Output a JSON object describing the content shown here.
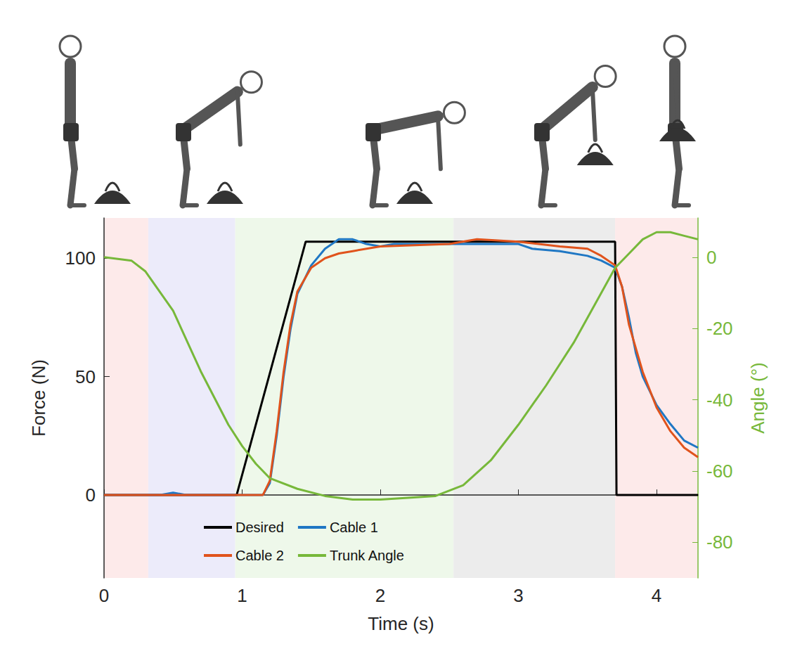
{
  "chart_data": {
    "type": "line",
    "x_label": "Time (s)",
    "y_label": "Force (N)",
    "y2_label": "Angle (°)",
    "xlim": [
      0,
      4.3
    ],
    "xticks": [
      0,
      1,
      2,
      3,
      4
    ],
    "ylim": [
      -35,
      117
    ],
    "yticks": [
      0,
      50,
      100
    ],
    "y2lim": [
      -90,
      11
    ],
    "y2ticks": [
      -80,
      -60,
      -40,
      -20,
      0
    ],
    "grid": false,
    "legend": "bottom",
    "phases": [
      {
        "start": 0,
        "end": 0.32,
        "color": "#fdeaea"
      },
      {
        "start": 0.32,
        "end": 0.95,
        "color": "#ecebfa"
      },
      {
        "start": 0.95,
        "end": 2.53,
        "color": "#eef8ea"
      },
      {
        "start": 2.53,
        "end": 3.7,
        "color": "#ececec"
      },
      {
        "start": 3.7,
        "end": 4.3,
        "color": "#fdeaea"
      }
    ],
    "series": [
      {
        "name": "Desired",
        "color": "#000000",
        "x": [
          0,
          0.96,
          1.46,
          3.7,
          3.71,
          4.3
        ],
        "values": [
          0,
          0,
          107,
          107,
          0,
          0
        ]
      },
      {
        "name": "Cable 1",
        "color": "#1f77c4",
        "x": [
          0,
          0.4,
          0.5,
          0.6,
          1.0,
          1.15,
          1.2,
          1.25,
          1.3,
          1.35,
          1.4,
          1.5,
          1.6,
          1.7,
          1.8,
          1.9,
          2.0,
          2.1,
          2.5,
          3.0,
          3.1,
          3.3,
          3.5,
          3.6,
          3.7,
          3.75,
          3.8,
          3.85,
          3.9,
          4.0,
          4.1,
          4.2,
          4.3
        ],
        "values": [
          0,
          0,
          1,
          0,
          0,
          0,
          5,
          25,
          50,
          70,
          85,
          97,
          104,
          108,
          108,
          106,
          105,
          106,
          106,
          106,
          104,
          103,
          101,
          99,
          96,
          88,
          75,
          60,
          50,
          38,
          30,
          23,
          20
        ]
      },
      {
        "name": "Cable 2",
        "color": "#e0531c",
        "x": [
          0,
          1.0,
          1.15,
          1.2,
          1.25,
          1.3,
          1.35,
          1.4,
          1.5,
          1.6,
          1.7,
          1.8,
          2.0,
          2.5,
          2.7,
          3.0,
          3.3,
          3.5,
          3.6,
          3.7,
          3.75,
          3.8,
          3.9,
          4.0,
          4.1,
          4.2,
          4.3
        ],
        "values": [
          0,
          0,
          0,
          6,
          27,
          52,
          72,
          86,
          96,
          100,
          102,
          103,
          105,
          106,
          108,
          107,
          105,
          104,
          101,
          97,
          88,
          72,
          52,
          37,
          27,
          20,
          16
        ]
      },
      {
        "name": "Trunk Angle",
        "color": "#77b83a",
        "axis": "y2",
        "x": [
          0,
          0.2,
          0.3,
          0.5,
          0.7,
          0.9,
          1.0,
          1.1,
          1.2,
          1.4,
          1.6,
          1.8,
          2.0,
          2.2,
          2.4,
          2.6,
          2.8,
          3.0,
          3.2,
          3.4,
          3.6,
          3.7,
          3.8,
          3.9,
          4.0,
          4.1,
          4.2,
          4.3
        ],
        "values": [
          0,
          -1,
          -4,
          -15,
          -32,
          -47,
          -53,
          -58,
          -62,
          -65,
          -67,
          -68,
          -68,
          -67.5,
          -67,
          -64,
          -57,
          -47,
          -36,
          -24,
          -10,
          -3,
          1,
          5,
          7,
          7,
          6,
          5
        ]
      }
    ]
  }
}
